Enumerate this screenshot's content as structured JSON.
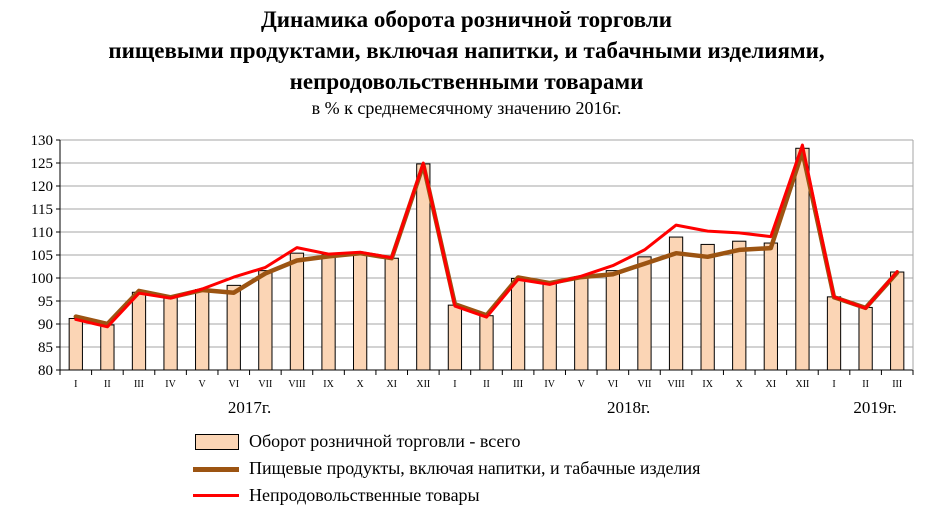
{
  "title_lines": [
    "Динамика оборота розничной торговли",
    "пищевыми продуктами, включая напитки, и табачными изделиями,",
    "непродовольственными товарами"
  ],
  "subtitle": "в % к среднемесячному значению 2016г.",
  "legend": [
    "Оборот розничной торговли - всего",
    "Пищевые продукты, включая напитки,  и табачные  изделия",
    "Непродовольственные товары"
  ],
  "colors": {
    "bar_fill": "#fbd5b5",
    "bar_stroke": "#000000",
    "food_line": "#9c5412",
    "nonfood_line": "#ff0000",
    "grid": "#a6a6a6"
  },
  "chart_data": {
    "type": "bar",
    "categories": [
      "I",
      "II",
      "III",
      "IV",
      "V",
      "VI",
      "VII",
      "VIII",
      "IX",
      "X",
      "XI",
      "XII",
      "I",
      "II",
      "III",
      "IV",
      "V",
      "VI",
      "VII",
      "VIII",
      "IX",
      "X",
      "XI",
      "XII",
      "I",
      "II",
      "III"
    ],
    "year_labels": [
      "2017г.",
      "2018г.",
      "2019г."
    ],
    "ylim": [
      80,
      130
    ],
    "yticks": [
      80,
      85,
      90,
      95,
      100,
      105,
      110,
      115,
      120,
      125,
      130
    ],
    "grid": true,
    "legend_position": "bottom",
    "series": [
      {
        "name": "Оборот розничной торговли - всего",
        "kind": "bar",
        "values": [
          91.2,
          89.8,
          96.9,
          95.8,
          97.5,
          98.4,
          101.6,
          105.4,
          105.0,
          105.4,
          104.3,
          124.8,
          94.1,
          91.8,
          99.9,
          98.8,
          100.3,
          101.6,
          104.6,
          108.9,
          107.3,
          108.0,
          107.6,
          128.2,
          95.9,
          93.6,
          101.3
        ]
      },
      {
        "name": "Пищевые продукты, включая напитки,  и табачные  изделия",
        "kind": "line",
        "values": [
          91.6,
          90.0,
          97.2,
          95.8,
          97.4,
          96.8,
          101.0,
          103.8,
          104.7,
          105.4,
          104.3,
          124.6,
          94.3,
          91.9,
          100.1,
          98.9,
          100.2,
          100.8,
          103.1,
          105.4,
          104.6,
          106.1,
          106.5,
          127.5,
          95.8,
          93.5,
          101.2
        ]
      },
      {
        "name": "Непродовольственные товары",
        "kind": "line",
        "values": [
          91.0,
          89.4,
          96.7,
          95.6,
          97.6,
          100.2,
          102.3,
          106.6,
          105.2,
          105.6,
          104.4,
          125.0,
          93.9,
          91.5,
          99.7,
          98.6,
          100.4,
          102.7,
          106.1,
          111.5,
          110.2,
          109.8,
          109.0,
          128.9,
          95.9,
          93.4,
          101.4
        ]
      }
    ]
  }
}
